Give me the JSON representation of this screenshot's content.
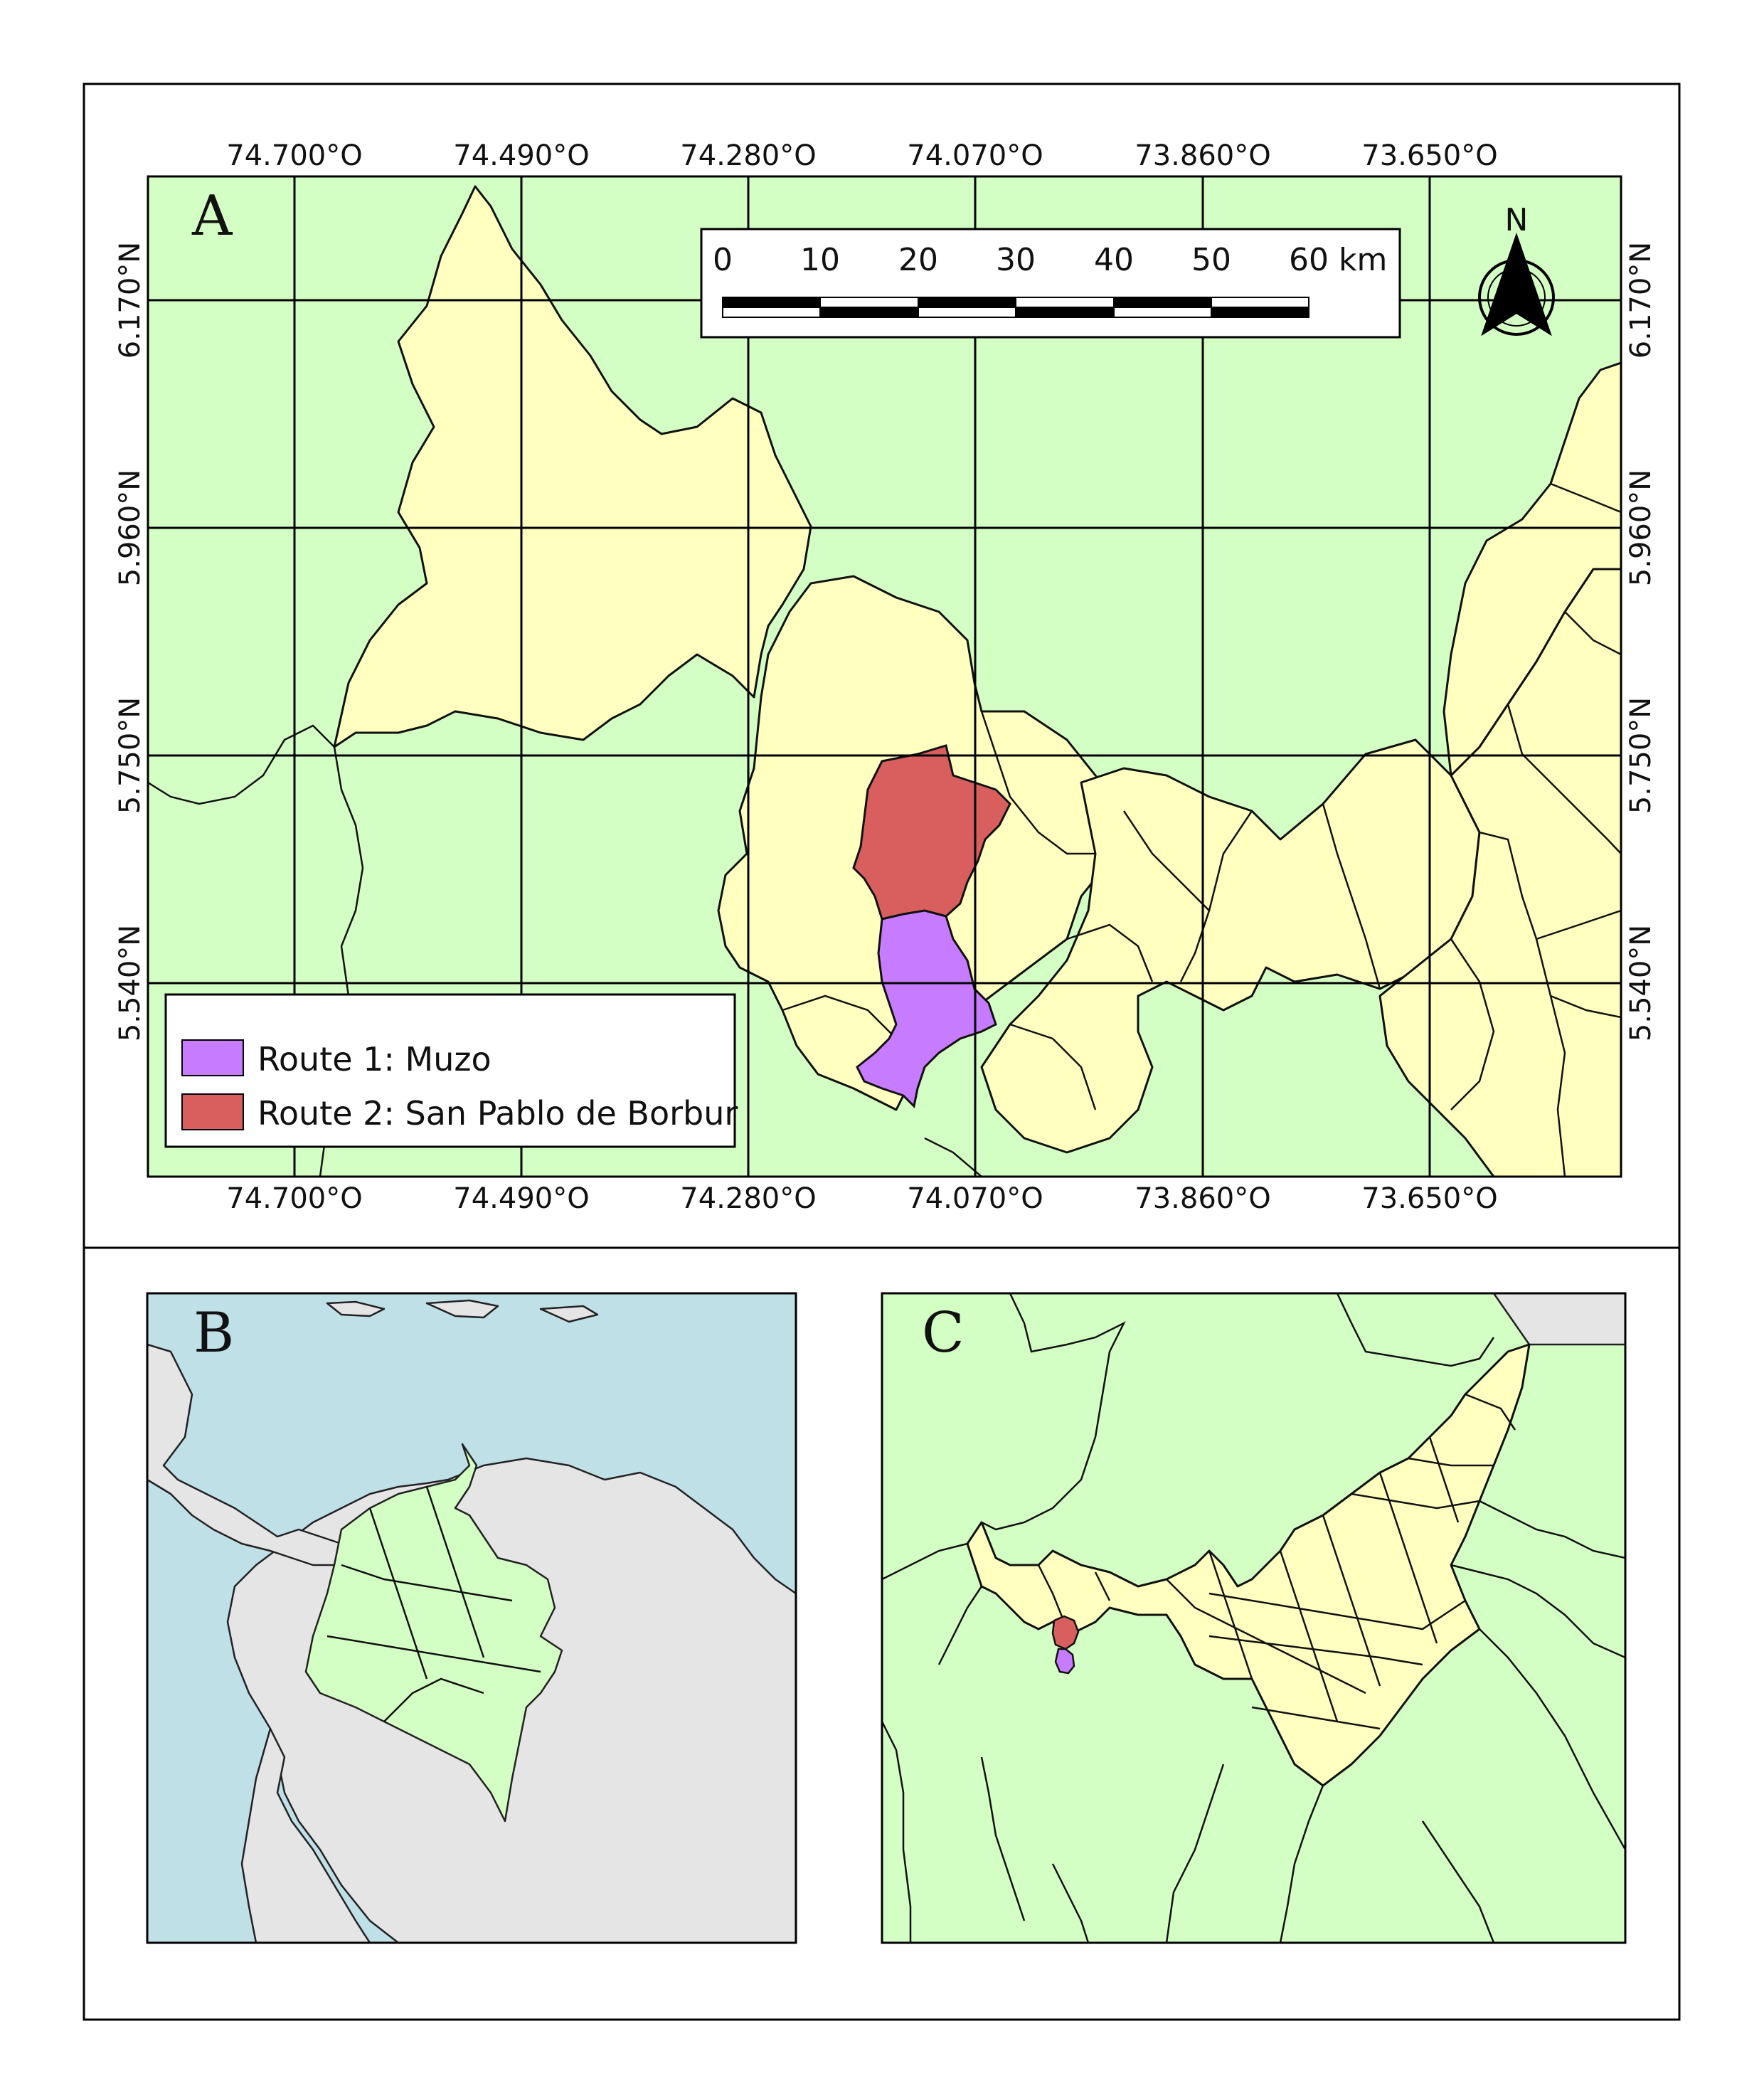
{
  "panels": {
    "a": {
      "letter": "A",
      "longitude_labels": [
        "74.700°O",
        "74.490°O",
        "74.280°O",
        "74.070°O",
        "73.860°O",
        "73.650°O"
      ],
      "latitude_labels": [
        "6.170°N",
        "5.960°N",
        "5.750°N",
        "5.540°N"
      ]
    },
    "b": {
      "letter": "B"
    },
    "c": {
      "letter": "C"
    }
  },
  "scale_bar": {
    "labels": [
      "0",
      "10",
      "20",
      "30",
      "40",
      "50"
    ],
    "last_label": "60 km"
  },
  "north_arrow": {
    "label": "N"
  },
  "legend": [
    {
      "label": "Route 1: Muzo",
      "color": "#c77cff"
    },
    {
      "label": "Route 2: San Pablo de Borbur",
      "color": "#d95f5f"
    }
  ],
  "colors": {
    "land_background": "#d4ffc4",
    "boyaca_municipalities": "#ffffc0",
    "muzo": "#c77cff",
    "san_pablo_de_borbur": "#d95f5f",
    "sea": "#c0e0e8",
    "neighbour_countries": "#e5e5e5"
  }
}
